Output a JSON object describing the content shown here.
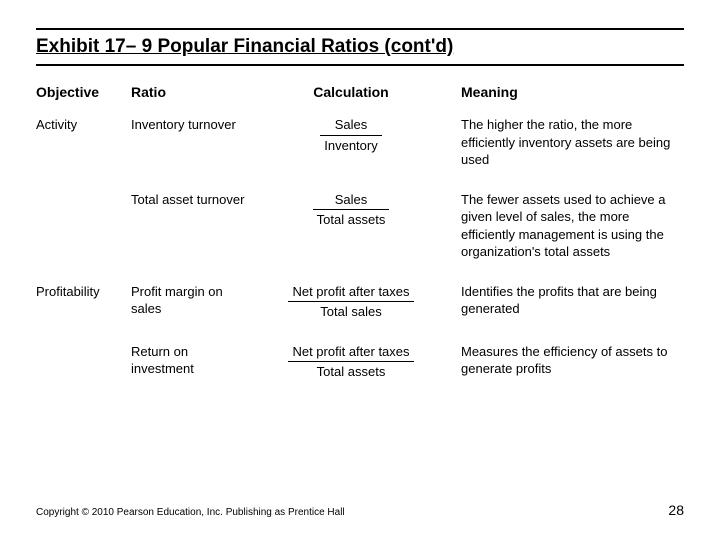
{
  "title": "Exhibit 17– 9   Popular Financial Ratios (cont'd)",
  "headers": {
    "objective": "Objective",
    "ratio": "Ratio",
    "calculation": "Calculation",
    "meaning": "Meaning"
  },
  "rows": [
    {
      "objective": "Activity",
      "ratio": "Inventory turnover",
      "calc_num": "Sales",
      "calc_den": "Inventory",
      "meaning": "The higher the ratio, the more efficiently inventory assets are being used"
    },
    {
      "objective": "",
      "ratio": "Total asset turnover",
      "calc_num": "Sales",
      "calc_den": "Total assets",
      "meaning": "The fewer assets used to achieve a given level of sales, the more efficiently management is using the organization's total assets"
    },
    {
      "objective": "Profitability",
      "ratio": "Profit margin on sales",
      "calc_num": "Net profit after taxes",
      "calc_den": "Total sales",
      "meaning": "Identifies the profits that are being generated"
    },
    {
      "objective": "",
      "ratio": "Return on investment",
      "calc_num": "Net profit after taxes",
      "calc_den": "Total assets",
      "meaning": "Measures the efficiency of assets to generate profits"
    }
  ],
  "footer": {
    "copyright": "Copyright © 2010 Pearson Education, Inc. Publishing as Prentice Hall",
    "pagenum": "28"
  },
  "style": {
    "background": "#ffffff",
    "text_color": "#000000",
    "rule_color": "#000000",
    "title_fontsize": 19,
    "header_fontsize": 14,
    "body_fontsize": 13,
    "footer_fontsize": 10
  }
}
